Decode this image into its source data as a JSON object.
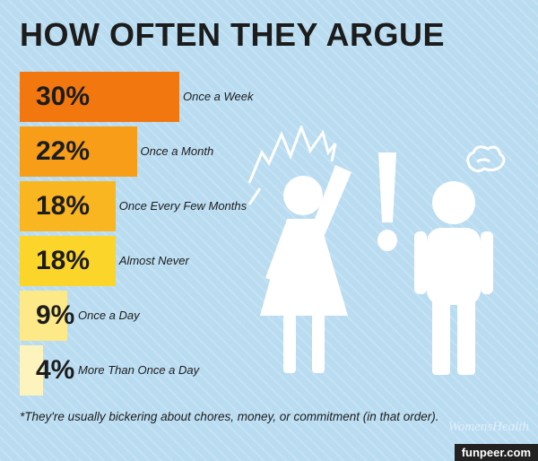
{
  "title": "HOW OFTEN THEY ARGUE",
  "footnote": "*They're usually bickering about chores, money, or commitment (in that order).",
  "watermark": "WomensHealth",
  "credit": "funpeer.com",
  "icons": [
    "argument-figures-icon"
  ],
  "chart_data": {
    "type": "bar",
    "orientation": "horizontal",
    "title": "HOW OFTEN THEY ARGUE",
    "categories": [
      "Once a Week",
      "Once a Month",
      "Once Every Few Months",
      "Almost Never",
      "Once a Day",
      "More Than Once a Day"
    ],
    "values": [
      30,
      22,
      18,
      18,
      9,
      4
    ],
    "value_labels": [
      "30%",
      "22%",
      "18%",
      "18%",
      "9%",
      "4%"
    ],
    "colors": [
      "#f2770f",
      "#f79d17",
      "#fab620",
      "#fbd52a",
      "#fde988",
      "#fdf3bc"
    ],
    "xlim": [
      0,
      30
    ],
    "grid": false,
    "legend": "none"
  }
}
